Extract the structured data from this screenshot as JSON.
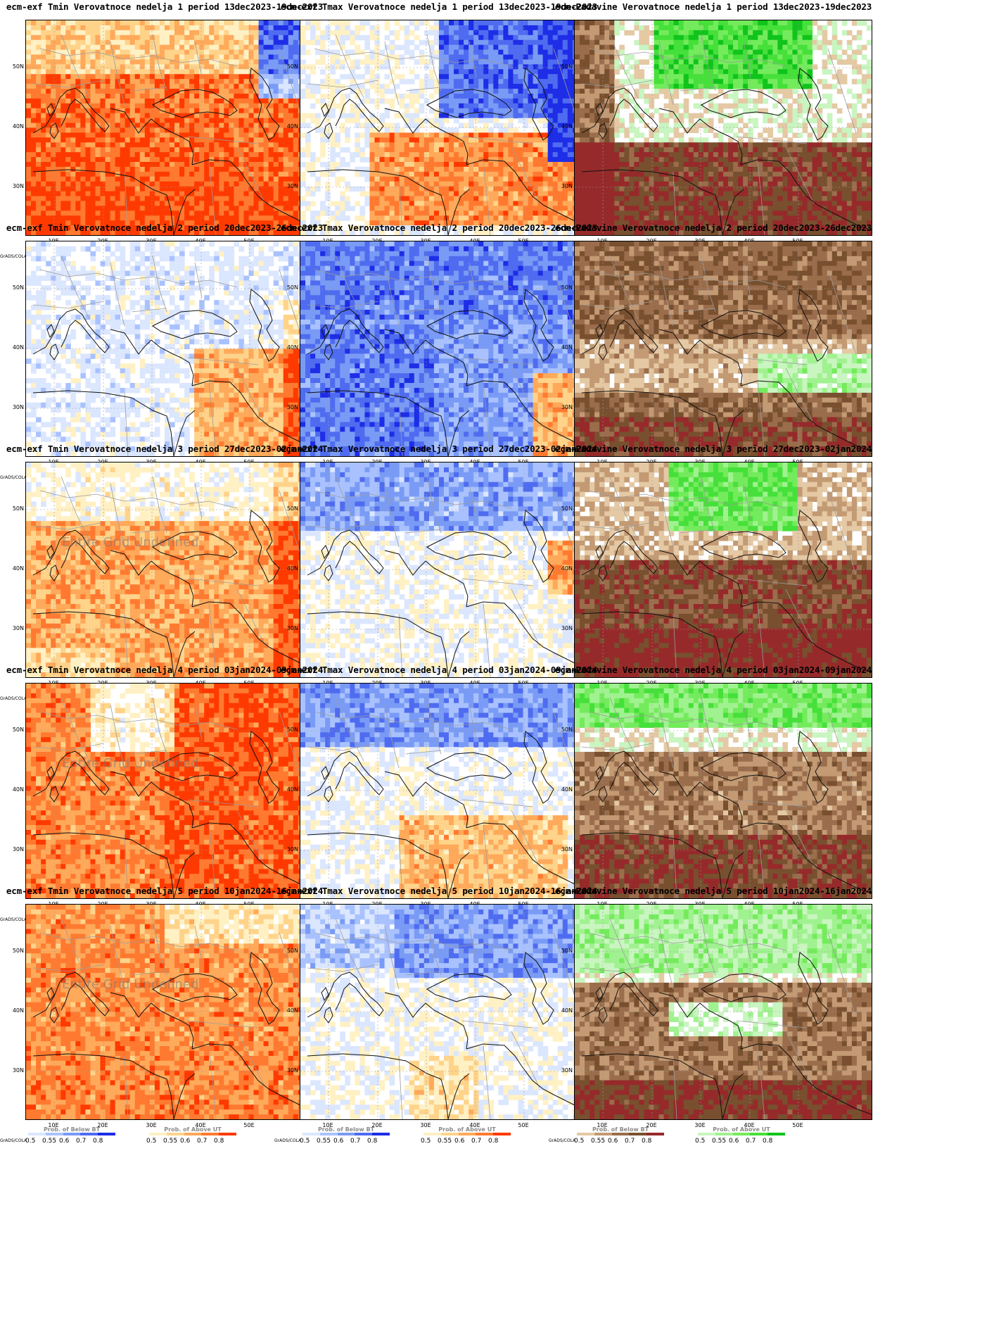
{
  "scale": {
    "values": [
      "0.5",
      "0.55",
      "0.6",
      "0.7",
      "0.8"
    ],
    "blue": [
      "#dbe6ff",
      "#a9c2ff",
      "#7a9bf5",
      "#4f6cf0",
      "#1e2de6"
    ],
    "red": [
      "#fff1c4",
      "#ffd38a",
      "#ffa95a",
      "#ff7a30",
      "#ff3a00"
    ],
    "brown": [
      "#e4c9a4",
      "#c39a73",
      "#9a6d4c",
      "#78502f",
      "#962a2a"
    ],
    "green": [
      "#c9f5c0",
      "#a0f290",
      "#74eb5c",
      "#46e03a",
      "#10c41c"
    ]
  },
  "labels": {
    "grads": "GrADS/COLA",
    "below": "Prob. of Below BT",
    "above": "Prob. of Above UT",
    "undefined": "Entire Grid Undefined",
    "xticks": [
      "10E",
      "20E",
      "30E",
      "40E",
      "50E"
    ],
    "yticks": [
      "50N",
      "40N",
      "30N"
    ]
  },
  "panels": [
    {
      "title": "ecm-exf Tmin Verovatnoce nedelja 1 period 13dec2023-19dec2023",
      "var": "tmin",
      "week": 1
    },
    {
      "title": "ecm-exf Tmax Verovatnoce nedelja 1 period 13dec2023-19dec2023",
      "var": "tmax",
      "week": 1
    },
    {
      "title": "ecm-Padavine Verovatnoce nedelja 1 period 13dec2023-19dec2023",
      "var": "pr",
      "week": 1
    },
    {
      "title": "ecm-exf Tmin Verovatnoce nedelja 2 period 20dec2023-26dec2023",
      "var": "tmin",
      "week": 2
    },
    {
      "title": "ecm-exf Tmax Verovatnoce nedelja 2 period 20dec2023-26dec2023",
      "var": "tmax",
      "week": 2
    },
    {
      "title": "ecm-Padavine Verovatnoce nedelja 2 period 20dec2023-26dec2023",
      "var": "pr",
      "week": 2
    },
    {
      "title": "ecm-exf Tmin Verovatnoce nedelja 3 period 27dec2023-02jan2024",
      "var": "tmin",
      "week": 3,
      "undefined": true
    },
    {
      "title": "ecm-exf Tmax Verovatnoce nedelja 3 period 27dec2023-02jan2024",
      "var": "tmax",
      "week": 3
    },
    {
      "title": "ecm-Padavine Verovatnoce nedelja 3 period 27dec2023-02jan2024",
      "var": "pr",
      "week": 3
    },
    {
      "title": "ecm-exf Tmin Verovatnoce nedelja 4 period 03jan2024-09jan2024",
      "var": "tmin",
      "week": 4,
      "undefined": true
    },
    {
      "title": "ecm-exf Tmax Verovatnoce nedelja 4 period 03jan2024-09jan2024",
      "var": "tmax",
      "week": 4
    },
    {
      "title": "ecm-Padavine Verovatnoce nedelja 4 period 03jan2024-09jan2024",
      "var": "pr",
      "week": 4
    },
    {
      "title": "ecm-exf Tmin Verovatnoce nedelja 5 period 10jan2024-16jan2024",
      "var": "tmin",
      "week": 5,
      "undefined": true
    },
    {
      "title": "ecm-exf Tmax Verovatnoce nedelja 5 period 10jan2024-16jan2024",
      "var": "tmax",
      "week": 5
    },
    {
      "title": "ecm-Padavine Verovatnoce nedelja 5 period 10jan2024-16jan2024",
      "var": "pr",
      "week": 5
    }
  ]
}
